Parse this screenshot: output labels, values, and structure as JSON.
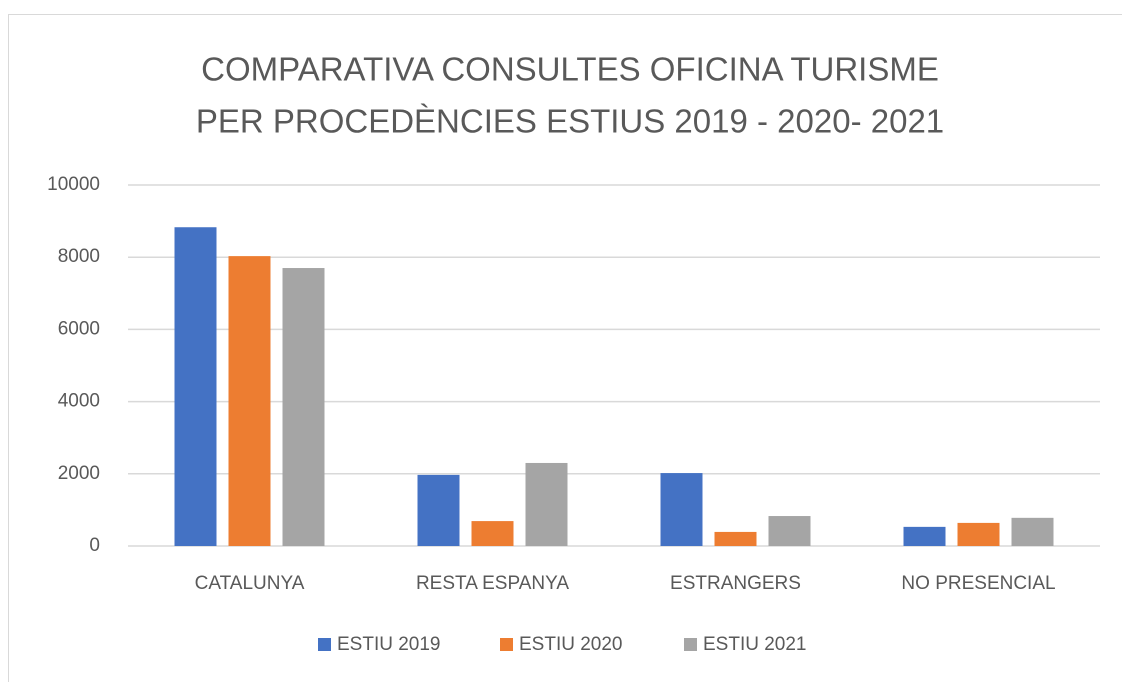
{
  "chart_data": {
    "type": "bar",
    "title": [
      "COMPARATIVA CONSULTES OFICINA TURISME",
      "PER PROCEDÈNCIES ESTIUS 2019 - 2020- 2021"
    ],
    "categories": [
      "CATALUNYA",
      "RESTA ESPANYA",
      "ESTRANGERS",
      "NO PRESENCIAL"
    ],
    "series": [
      {
        "name": "ESTIU 2019",
        "color": "#4472c4",
        "values": [
          8830,
          1970,
          2020,
          530
        ]
      },
      {
        "name": "ESTIU 2020",
        "color": "#ed7d31",
        "values": [
          8030,
          690,
          390,
          640
        ]
      },
      {
        "name": "ESTIU 2021",
        "color": "#a5a5a5",
        "values": [
          7700,
          2300,
          830,
          780
        ]
      }
    ],
    "ylim": [
      0,
      10000
    ],
    "yticks": [
      0,
      2000,
      4000,
      6000,
      8000,
      10000
    ],
    "grid": true,
    "legend": "bottom"
  }
}
